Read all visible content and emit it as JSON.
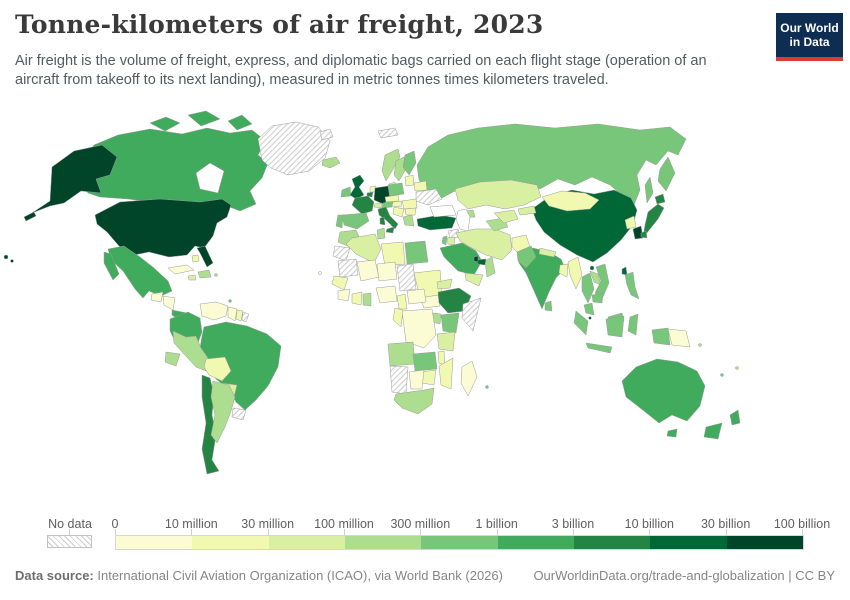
{
  "header": {
    "title": "Tonne-kilometers of air freight, 2023",
    "subtitle_lines": [
      "Air freight is the volume of freight, express, and diplomatic bags carried on each flight stage (operation of an",
      "aircraft from takeoff to its next landing), measured in metric tonnes times kilometers traveled."
    ],
    "logo": {
      "line1": "Our World",
      "line2": "in Data",
      "bg_color": "#0d2e52",
      "accent_color": "#dc3b33"
    }
  },
  "legend": {
    "no_data_label": "No data",
    "tick_labels": [
      "0",
      "10 million",
      "30 million",
      "100 million",
      "300 million",
      "1 billion",
      "3 billion",
      "10 billion",
      "30 billion",
      "100 billion"
    ]
  },
  "footer": {
    "source_label": "Data source:",
    "source_text": " International Civil Aviation Organization (ICAO), via World Bank (2026)",
    "right_text": "OurWorldinData.org/trade-and-globalization | CC BY"
  },
  "chart_data": {
    "type": "heatmap",
    "subtype": "world-choropleth",
    "title": "Tonne-kilometers of air freight, 2023",
    "metric": "Air freight volume",
    "unit": "metric tonnes times kilometers traveled",
    "year": 2023,
    "legend_position": "bottom",
    "bins": [
      {
        "range": "0 – 10 million",
        "color": "#fbfcd4"
      },
      {
        "range": "10 – 30 million",
        "color": "#f1f9b0"
      },
      {
        "range": "30 – 100 million",
        "color": "#d9f0a3"
      },
      {
        "range": "100 – 300 million",
        "color": "#addd8e"
      },
      {
        "range": "300 million – 1 billion",
        "color": "#78c679"
      },
      {
        "range": "1 – 3 billion",
        "color": "#41ab5d"
      },
      {
        "range": "3 – 10 billion",
        "color": "#238443"
      },
      {
        "range": "10 – 30 billion",
        "color": "#006837"
      },
      {
        "range": "30 – 100 billion",
        "color": "#004529"
      }
    ],
    "no_data_pattern": "diagonal-hatch",
    "no_data_countries": [
      "Greenland",
      "Uruguay",
      "French Guiana",
      "Ukraine",
      "Syria",
      "Somalia",
      "Chad",
      "Mauritania",
      "Western Sahara",
      "Namibia",
      "Svalbard"
    ],
    "country_bins": {
      "United States": 9,
      "Canada": 6,
      "Mexico": 6,
      "Guatemala": 1,
      "Honduras": 1,
      "Panama": 6,
      "Cuba": 1,
      "Jamaica": 3,
      "Bahamas": 2,
      "Dominican Republic": 4,
      "Puerto Rico": 4,
      "Trinidad and Tobago": 5,
      "Colombia": 6,
      "Venezuela": 1,
      "Guyana": 1,
      "Suriname": 2,
      "Ecuador": 4,
      "Peru": 4,
      "Brazil": 6,
      "Bolivia": 2,
      "Paraguay": 3,
      "Chile": 7,
      "Argentina": 4,
      "Iceland": 4,
      "Ireland": 5,
      "United Kingdom": 8,
      "Norway": 4,
      "Sweden": 4,
      "Finland": 5,
      "Denmark": 3,
      "Netherlands": 2,
      "Belgium": 7,
      "Germany": 9,
      "France": 7,
      "Spain": 5,
      "Portugal": 5,
      "Switzerland": 3,
      "Austria": 5,
      "Czechia": 2,
      "Poland": 5,
      "Lithuania": 2,
      "Belarus": 2,
      "Hungary": 2,
      "Romania": 2,
      "Serbia": 2,
      "Bulgaria": 2,
      "Greece": 4,
      "Italy": 7,
      "Russia": 5,
      "Turkey": 8,
      "Georgia": 4,
      "Israel": 5,
      "Jordan": 3,
      "Iraq": 2,
      "Saudi Arabia": 6,
      "Kuwait": 4,
      "Qatar": 9,
      "United Arab Emirates": 8,
      "Oman": 4,
      "Yemen": 3,
      "Iran": 3,
      "Afghanistan": 2,
      "Pakistan": 5,
      "Turkmenistan": 4,
      "Uzbekistan": 3,
      "Kazakhstan": 3,
      "Kyrgyzstan": 3,
      "Morocco": 4,
      "Algeria": 3,
      "Tunisia": 4,
      "Libya": 2,
      "Egypt": 5,
      "Mali": 1,
      "Niger": 1,
      "Sudan": 2,
      "South Sudan": 1,
      "Senegal": 2,
      "Guinea": 1,
      "Cote d'Ivoire": 2,
      "Ghana": 4,
      "Nigeria": 1,
      "Cameroon": 2,
      "Central African Republic": 1,
      "Ethiopia": 7,
      "Eritrea": 3,
      "Kenya": 5,
      "Uganda": 4,
      "Democratic Republic of Congo": 1,
      "Republic of Congo": 2,
      "Tanzania": 3,
      "Angola": 4,
      "Zambia": 5,
      "Malawi": 2,
      "Mozambique": 2,
      "Zimbabwe": 2,
      "Botswana": 1,
      "South Africa": 4,
      "Madagascar": 1,
      "Cape Verde": 1,
      "Mauritius": 5,
      "China": 8,
      "Mongolia": 2,
      "North Korea": 2,
      "South Korea": 9,
      "Japan": 7,
      "Taiwan": 8,
      "India": 6,
      "Nepal": 3,
      "Bangladesh": 2,
      "Sri Lanka": 5,
      "Myanmar": 2,
      "Thailand": 5,
      "Laos": 4,
      "Vietnam": 5,
      "Cambodia": 5,
      "Malaysia": 5,
      "Singapore": 9,
      "Indonesia": 5,
      "Philippines": 5,
      "Papua New Guinea": 1,
      "Australia": 6,
      "New Zealand": 6,
      "Fiji": 4,
      "Solomon Islands": 4,
      "New Caledonia": 5
    }
  }
}
